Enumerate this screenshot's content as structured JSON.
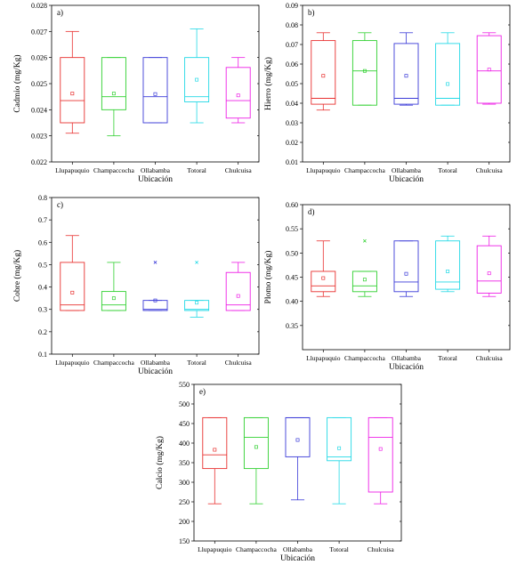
{
  "chart_data": [
    {
      "panel": "a)",
      "type": "box",
      "xlabel": "Ubicación",
      "ylabel": "Cadmio (mg/Kg)",
      "ylim": [
        0.022,
        0.028
      ],
      "yticks": [
        "0.022",
        "0.023",
        "0.024",
        "0.025",
        "0.026",
        "0.027",
        "0.028"
      ],
      "categories": [
        "Llupapuquio",
        "Champaccocha",
        "Ollabamba",
        "Totoral",
        "Chulcuisa"
      ],
      "series": [
        {
          "category": "Llupapuquio",
          "color": "#e8302f",
          "min": 0.0231,
          "q1": 0.0235,
          "median": 0.02435,
          "q3": 0.026,
          "max": 0.027,
          "mean": 0.02462,
          "outliers": []
        },
        {
          "category": "Champaccocha",
          "color": "#2fd02f",
          "min": 0.023,
          "q1": 0.024,
          "median": 0.0245,
          "q3": 0.026,
          "max": 0.026,
          "mean": 0.02462,
          "outliers": []
        },
        {
          "category": "Ollabamba",
          "color": "#3b3bd8",
          "min": 0.0235,
          "q1": 0.0235,
          "median": 0.0245,
          "q3": 0.026,
          "max": 0.026,
          "mean": 0.0246,
          "outliers": []
        },
        {
          "category": "Totoral",
          "color": "#23d9e6",
          "min": 0.0235,
          "q1": 0.0243,
          "median": 0.0245,
          "q3": 0.026,
          "max": 0.0271,
          "mean": 0.02515,
          "outliers": []
        },
        {
          "category": "Chulcuisa",
          "color": "#ee1fe6",
          "min": 0.0235,
          "q1": 0.02368,
          "median": 0.02435,
          "q3": 0.02562,
          "max": 0.026,
          "mean": 0.02455,
          "outliers": []
        }
      ]
    },
    {
      "panel": "b)",
      "type": "box",
      "xlabel": "Ubicación",
      "ylabel": "Hierro (mg/Kg)",
      "ylim": [
        0.01,
        0.09
      ],
      "yticks": [
        "0.01",
        "0.02",
        "0.03",
        "0.04",
        "0.05",
        "0.06",
        "0.07",
        "0.08",
        "0.09"
      ],
      "categories": [
        "Llupapuquio",
        "Champaccocha",
        "Ollabamba",
        "Totoral",
        "Chulcuisa"
      ],
      "series": [
        {
          "category": "Llupapuquio",
          "color": "#e8302f",
          "min": 0.0365,
          "q1": 0.0395,
          "median": 0.0425,
          "q3": 0.072,
          "max": 0.076,
          "mean": 0.054,
          "outliers": []
        },
        {
          "category": "Champaccocha",
          "color": "#2fd02f",
          "min": 0.039,
          "q1": 0.039,
          "median": 0.0565,
          "q3": 0.072,
          "max": 0.076,
          "mean": 0.0565,
          "outliers": []
        },
        {
          "category": "Ollabamba",
          "color": "#3b3bd8",
          "min": 0.039,
          "q1": 0.0395,
          "median": 0.0425,
          "q3": 0.0705,
          "max": 0.076,
          "mean": 0.054,
          "outliers": []
        },
        {
          "category": "Totoral",
          "color": "#23d9e6",
          "min": 0.039,
          "q1": 0.039,
          "median": 0.0425,
          "q3": 0.0705,
          "max": 0.076,
          "mean": 0.0498,
          "outliers": []
        },
        {
          "category": "Chulcuisa",
          "color": "#ee1fe6",
          "min": 0.0395,
          "q1": 0.04,
          "median": 0.0565,
          "q3": 0.0745,
          "max": 0.076,
          "mean": 0.0572,
          "outliers": []
        }
      ]
    },
    {
      "panel": "c)",
      "type": "box",
      "xlabel": "Ubicación",
      "ylabel": "Cobre (mg/Kg)",
      "ylim": [
        0.1,
        0.8
      ],
      "yticks": [
        "0.1",
        "0.2",
        "0.3",
        "0.4",
        "0.5",
        "0.6",
        "0.7",
        "0.8"
      ],
      "categories": [
        "Llupapuquio",
        "Champaccocha",
        "Ollabamba",
        "Totoral",
        "Chulcuisa"
      ],
      "series": [
        {
          "category": "Llupapuquio",
          "color": "#e8302f",
          "min": 0.295,
          "q1": 0.295,
          "median": 0.32,
          "q3": 0.51,
          "max": 0.63,
          "mean": 0.375,
          "outliers": []
        },
        {
          "category": "Champaccocha",
          "color": "#2fd02f",
          "min": 0.295,
          "q1": 0.295,
          "median": 0.32,
          "q3": 0.38,
          "max": 0.51,
          "mean": 0.35,
          "outliers": []
        },
        {
          "category": "Ollabamba",
          "color": "#3b3bd8",
          "min": 0.295,
          "q1": 0.295,
          "median": 0.3,
          "q3": 0.34,
          "max": 0.34,
          "mean": 0.34,
          "outliers": [
            0.51
          ]
        },
        {
          "category": "Totoral",
          "color": "#23d9e6",
          "min": 0.265,
          "q1": 0.295,
          "median": 0.3,
          "q3": 0.34,
          "max": 0.34,
          "mean": 0.33,
          "outliers": [
            0.51
          ]
        },
        {
          "category": "Chulcuisa",
          "color": "#ee1fe6",
          "min": 0.295,
          "q1": 0.295,
          "median": 0.32,
          "q3": 0.465,
          "max": 0.51,
          "mean": 0.36,
          "outliers": []
        }
      ]
    },
    {
      "panel": "d)",
      "type": "box",
      "xlabel": "Ubicación",
      "ylabel": "Plomo (mg/Kg)",
      "ylim": [
        0.3,
        0.6
      ],
      "yticks": [
        "0.35",
        "0.40",
        "0.45",
        "0.50",
        "0.55",
        "0.60"
      ],
      "categories": [
        "Llupapuquio",
        "Champaccocha",
        "Ollabamba",
        "Totoral",
        "Chulcuisa"
      ],
      "series": [
        {
          "category": "Llupapuquio",
          "color": "#e8302f",
          "min": 0.41,
          "q1": 0.42,
          "median": 0.432,
          "q3": 0.462,
          "max": 0.525,
          "mean": 0.448,
          "outliers": []
        },
        {
          "category": "Champaccocha",
          "color": "#2fd02f",
          "min": 0.41,
          "q1": 0.42,
          "median": 0.432,
          "q3": 0.462,
          "max": 0.462,
          "mean": 0.445,
          "outliers": [
            0.525
          ]
        },
        {
          "category": "Ollabamba",
          "color": "#3b3bd8",
          "min": 0.41,
          "q1": 0.42,
          "median": 0.44,
          "q3": 0.525,
          "max": 0.525,
          "mean": 0.457,
          "outliers": []
        },
        {
          "category": "Totoral",
          "color": "#23d9e6",
          "min": 0.42,
          "q1": 0.425,
          "median": 0.44,
          "q3": 0.525,
          "max": 0.535,
          "mean": 0.462,
          "outliers": []
        },
        {
          "category": "Chulcuisa",
          "color": "#ee1fe6",
          "min": 0.41,
          "q1": 0.417,
          "median": 0.442,
          "q3": 0.515,
          "max": 0.535,
          "mean": 0.458,
          "outliers": []
        }
      ]
    },
    {
      "panel": "e)",
      "type": "box",
      "xlabel": "Ubicación",
      "ylabel": "Calcio (mg/Kg)",
      "ylim": [
        150,
        550
      ],
      "yticks": [
        "150",
        "200",
        "250",
        "300",
        "350",
        "400",
        "450",
        "500",
        "550"
      ],
      "categories": [
        "Llupapuquio",
        "Champaccocha",
        "Ollabamba",
        "Totoral",
        "Chulcuisa"
      ],
      "series": [
        {
          "category": "Llupapuquio",
          "color": "#e8302f",
          "min": 245,
          "q1": 335,
          "median": 370,
          "q3": 465,
          "max": 465,
          "mean": 383,
          "outliers": []
        },
        {
          "category": "Champaccocha",
          "color": "#2fd02f",
          "min": 245,
          "q1": 335,
          "median": 415,
          "q3": 465,
          "max": 465,
          "mean": 390,
          "outliers": []
        },
        {
          "category": "Ollabamba",
          "color": "#3b3bd8",
          "min": 255,
          "q1": 365,
          "median": 465,
          "q3": 465,
          "max": 465,
          "mean": 408,
          "outliers": []
        },
        {
          "category": "Totoral",
          "color": "#23d9e6",
          "min": 245,
          "q1": 355,
          "median": 365,
          "q3": 465,
          "max": 465,
          "mean": 387,
          "outliers": []
        },
        {
          "category": "Chulcuisa",
          "color": "#ee1fe6",
          "min": 245,
          "q1": 275,
          "median": 415,
          "q3": 465,
          "max": 465,
          "mean": 385,
          "outliers": []
        }
      ]
    }
  ]
}
